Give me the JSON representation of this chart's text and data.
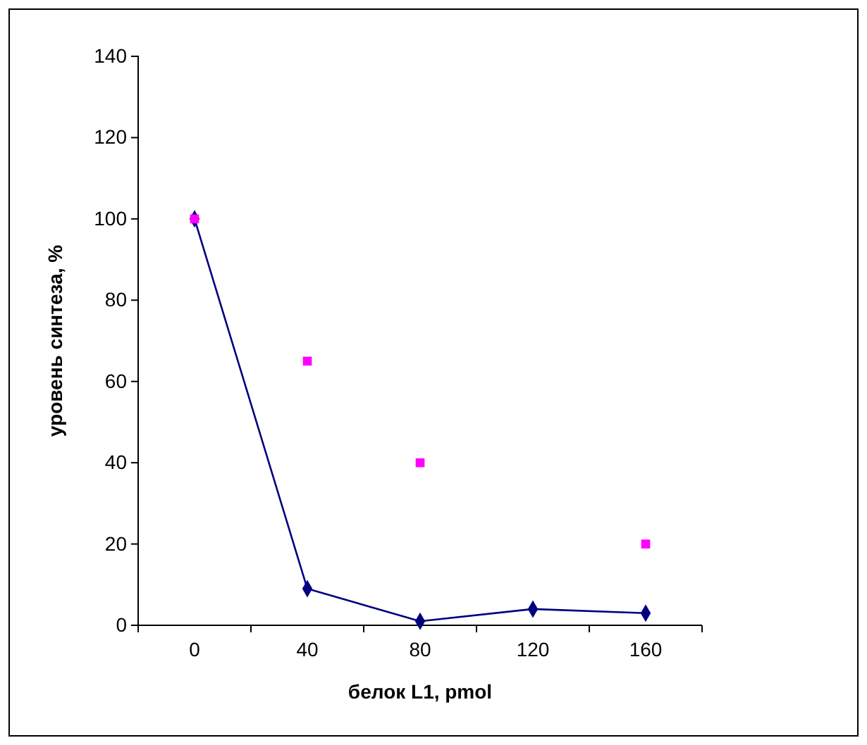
{
  "chart_data": {
    "type": "line",
    "xlabel": "белок L1, pmol",
    "ylabel": "уровень синтеза, %",
    "categories": [
      "0",
      "40",
      "80",
      "120",
      "160"
    ],
    "ylim": [
      0,
      140
    ],
    "yticks": [
      0,
      20,
      40,
      60,
      80,
      100,
      120,
      140
    ],
    "series": [
      {
        "color": "#000080",
        "marker": "diamond",
        "line_style": "solid",
        "values": [
          100,
          9,
          1,
          4,
          3
        ]
      },
      {
        "type": "scatter",
        "color": "#ff00ff",
        "marker": "square",
        "values": [
          100,
          65,
          40,
          null,
          20
        ]
      }
    ]
  }
}
